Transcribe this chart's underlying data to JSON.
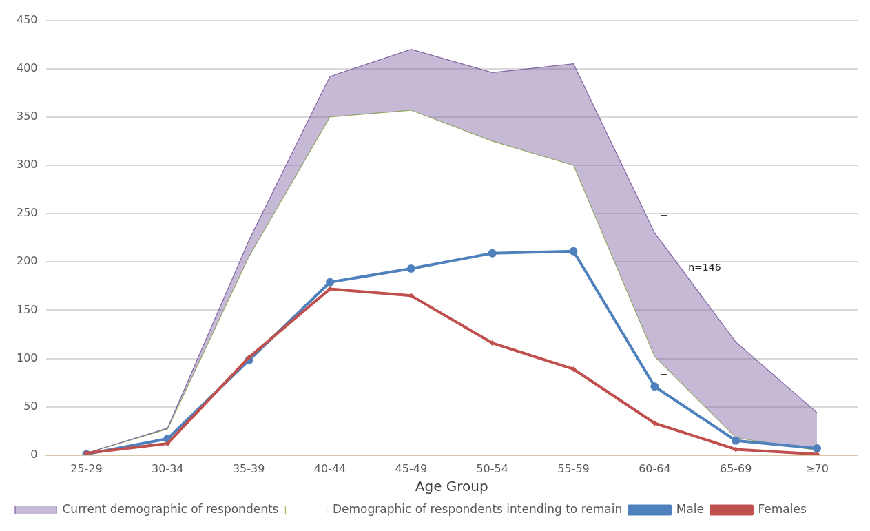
{
  "chart_data": {
    "type": "line",
    "xlabel": "Age Group",
    "categories": [
      "25-29",
      "30-34",
      "35-39",
      "40-44",
      "45-49",
      "50-54",
      "55-59",
      "60-64",
      "65-69",
      "≥70"
    ],
    "ylim": [
      0,
      450
    ],
    "yticks": [
      0,
      50,
      100,
      150,
      200,
      250,
      300,
      350,
      400,
      450
    ],
    "grid": "y",
    "legend": "bottom",
    "series": [
      {
        "name": "Current demographic of respondents",
        "type": "area",
        "color": "#8064a2",
        "values": [
          2,
          28,
          222,
          392,
          420,
          396,
          405,
          230,
          117,
          44
        ]
      },
      {
        "name": "Demographic of respondents intending to remain",
        "type": "area",
        "color": "#9bbb59",
        "values": [
          2,
          27,
          205,
          350,
          357,
          325,
          300,
          102,
          18,
          5
        ]
      },
      {
        "name": "Male",
        "color": "#4f81bd",
        "marker": "circle",
        "values": [
          1,
          17,
          98,
          179,
          193,
          209,
          211,
          71,
          15,
          7
        ]
      },
      {
        "name": "Females",
        "color": "#c0504d",
        "marker": "diamond",
        "values": [
          2,
          12,
          101,
          172,
          165,
          116,
          89,
          33,
          6,
          1
        ]
      }
    ],
    "annotations": [
      "n=146"
    ]
  }
}
